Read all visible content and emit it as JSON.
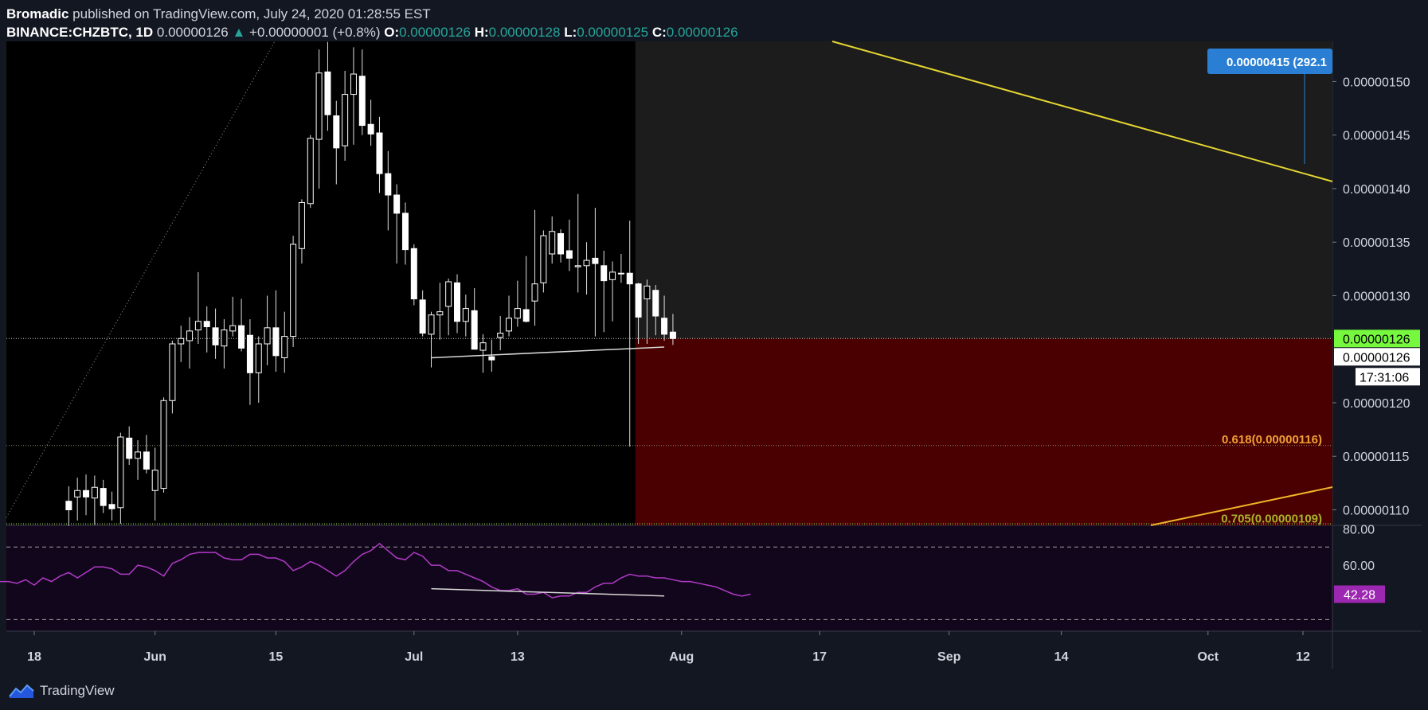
{
  "header": {
    "publisher": "Bromadic",
    "published_text": "published on TradingView.com, July 24, 2020 01:28:55 EST",
    "symbol": "BINANCE:CHZBTC, 1D",
    "last": "0.00000126",
    "change_arrow": "▲",
    "change": "+0.00000001 (+0.8%)",
    "o_label": "O:",
    "o_value": "0.00000126",
    "h_label": "H:",
    "h_value": "0.00000128",
    "l_label": "L:",
    "l_value": "0.00000125",
    "c_label": "C:",
    "c_value": "0.00000126"
  },
  "footer": {
    "brand": "TradingView",
    "logo_icon": "tradingview-logo-icon"
  },
  "colors": {
    "background": "#131722",
    "pane": "#000000",
    "up": "#ffffff",
    "down": "#ffffff",
    "trendline": "#e5d632",
    "fib_zone": "#4a0000",
    "future_zone": "#1c1c1c",
    "rsi_line": "#b13ac7",
    "rsi_bg": "#12061c",
    "current_price": "#76f83f",
    "measure_label": "#2a7fd4",
    "fib_618": "#f0a034",
    "fib_705": "#a8b22a"
  },
  "chart_data": {
    "type": "candlestick",
    "symbol": "BINANCE:CHZBTC",
    "timeframe": "1D",
    "x_ticks": [
      "18",
      "Jun",
      "15",
      "Jul",
      "13",
      "Aug",
      "17",
      "Sep",
      "14",
      "Oct",
      "12"
    ],
    "x_tick_dates": [
      "2020-05-18",
      "2020-06-01",
      "2020-06-15",
      "2020-07-01",
      "2020-07-13",
      "2020-08-01",
      "2020-08-17",
      "2020-09-01",
      "2020-09-14",
      "2020-10-01",
      "2020-10-12"
    ],
    "x_range": [
      "2020-05-11",
      "2020-10-19"
    ],
    "y_ticks": [
      "0.00000150",
      "0.00000145",
      "0.00000140",
      "0.00000135",
      "0.00000130",
      "0.00000120",
      "0.00000115",
      "0.00000110"
    ],
    "y_range": [
      1.0855e-06,
      1.5375e-06
    ],
    "candles": [
      {
        "d": "2020-05-22",
        "o": 1.108,
        "h": 1.122,
        "l": 1.085,
        "c": 1.1
      },
      {
        "d": "2020-05-23",
        "o": 1.112,
        "h": 1.13,
        "l": 1.09,
        "c": 1.118
      },
      {
        "d": "2020-05-24",
        "o": 1.118,
        "h": 1.133,
        "l": 1.095,
        "c": 1.112
      },
      {
        "d": "2020-05-25",
        "o": 1.111,
        "h": 1.132,
        "l": 1.086,
        "c": 1.121
      },
      {
        "d": "2020-05-26",
        "o": 1.12,
        "h": 1.128,
        "l": 1.097,
        "c": 1.104
      },
      {
        "d": "2020-05-27",
        "o": 1.105,
        "h": 1.117,
        "l": 1.09,
        "c": 1.101
      },
      {
        "d": "2020-05-28",
        "o": 1.102,
        "h": 1.172,
        "l": 1.087,
        "c": 1.168
      },
      {
        "d": "2020-05-29",
        "o": 1.167,
        "h": 1.178,
        "l": 1.142,
        "c": 1.148
      },
      {
        "d": "2020-05-30",
        "o": 1.148,
        "h": 1.165,
        "l": 1.128,
        "c": 1.154
      },
      {
        "d": "2020-05-31",
        "o": 1.154,
        "h": 1.17,
        "l": 1.134,
        "c": 1.138
      },
      {
        "d": "2020-06-01",
        "o": 1.118,
        "h": 1.158,
        "l": 1.09,
        "c": 1.137
      },
      {
        "d": "2020-06-02",
        "o": 1.12,
        "h": 1.205,
        "l": 1.116,
        "c": 1.202
      },
      {
        "d": "2020-06-03",
        "o": 1.202,
        "h": 1.258,
        "l": 1.19,
        "c": 1.255
      },
      {
        "d": "2020-06-04",
        "o": 1.255,
        "h": 1.272,
        "l": 1.238,
        "c": 1.26
      },
      {
        "d": "2020-06-05",
        "o": 1.258,
        "h": 1.28,
        "l": 1.232,
        "c": 1.267
      },
      {
        "d": "2020-06-06",
        "o": 1.268,
        "h": 1.322,
        "l": 1.255,
        "c": 1.276
      },
      {
        "d": "2020-06-07",
        "o": 1.276,
        "h": 1.29,
        "l": 1.247,
        "c": 1.271
      },
      {
        "d": "2020-06-08",
        "o": 1.27,
        "h": 1.288,
        "l": 1.241,
        "c": 1.254
      },
      {
        "d": "2020-06-09",
        "o": 1.253,
        "h": 1.278,
        "l": 1.232,
        "c": 1.268
      },
      {
        "d": "2020-06-10",
        "o": 1.267,
        "h": 1.299,
        "l": 1.262,
        "c": 1.272
      },
      {
        "d": "2020-06-11",
        "o": 1.272,
        "h": 1.297,
        "l": 1.248,
        "c": 1.251
      },
      {
        "d": "2020-06-12",
        "o": 1.263,
        "h": 1.278,
        "l": 1.198,
        "c": 1.228
      },
      {
        "d": "2020-06-13",
        "o": 1.228,
        "h": 1.262,
        "l": 1.2,
        "c": 1.255
      },
      {
        "d": "2020-06-14",
        "o": 1.255,
        "h": 1.3,
        "l": 1.235,
        "c": 1.27
      },
      {
        "d": "2020-06-15",
        "o": 1.27,
        "h": 1.305,
        "l": 1.229,
        "c": 1.244
      },
      {
        "d": "2020-06-16",
        "o": 1.242,
        "h": 1.285,
        "l": 1.228,
        "c": 1.262
      },
      {
        "d": "2020-06-17",
        "o": 1.262,
        "h": 1.356,
        "l": 1.252,
        "c": 1.348
      },
      {
        "d": "2020-06-18",
        "o": 1.344,
        "h": 1.39,
        "l": 1.33,
        "c": 1.387
      },
      {
        "d": "2020-06-19",
        "o": 1.386,
        "h": 1.45,
        "l": 1.382,
        "c": 1.447
      },
      {
        "d": "2020-06-20",
        "o": 1.446,
        "h": 1.53,
        "l": 1.4,
        "c": 1.508
      },
      {
        "d": "2020-06-21",
        "o": 1.509,
        "h": 1.537,
        "l": 1.454,
        "c": 1.469
      },
      {
        "d": "2020-06-22",
        "o": 1.468,
        "h": 1.482,
        "l": 1.404,
        "c": 1.438
      },
      {
        "d": "2020-06-23",
        "o": 1.44,
        "h": 1.51,
        "l": 1.426,
        "c": 1.488
      },
      {
        "d": "2020-06-24",
        "o": 1.488,
        "h": 1.532,
        "l": 1.441,
        "c": 1.507
      },
      {
        "d": "2020-06-25",
        "o": 1.505,
        "h": 1.53,
        "l": 1.45,
        "c": 1.459
      },
      {
        "d": "2020-06-26",
        "o": 1.46,
        "h": 1.483,
        "l": 1.44,
        "c": 1.451
      },
      {
        "d": "2020-06-27",
        "o": 1.452,
        "h": 1.467,
        "l": 1.396,
        "c": 1.414
      },
      {
        "d": "2020-06-28",
        "o": 1.414,
        "h": 1.435,
        "l": 1.361,
        "c": 1.394
      },
      {
        "d": "2020-06-29",
        "o": 1.394,
        "h": 1.404,
        "l": 1.33,
        "c": 1.377
      },
      {
        "d": "2020-06-30",
        "o": 1.377,
        "h": 1.387,
        "l": 1.329,
        "c": 1.343
      },
      {
        "d": "2020-07-01",
        "o": 1.344,
        "h": 1.348,
        "l": 1.291,
        "c": 1.297
      },
      {
        "d": "2020-07-02",
        "o": 1.296,
        "h": 1.305,
        "l": 1.262,
        "c": 1.265
      },
      {
        "d": "2020-07-03",
        "o": 1.264,
        "h": 1.285,
        "l": 1.233,
        "c": 1.282
      },
      {
        "d": "2020-07-04",
        "o": 1.282,
        "h": 1.312,
        "l": 1.259,
        "c": 1.285
      },
      {
        "d": "2020-07-05",
        "o": 1.29,
        "h": 1.316,
        "l": 1.263,
        "c": 1.313
      },
      {
        "d": "2020-07-06",
        "o": 1.312,
        "h": 1.32,
        "l": 1.265,
        "c": 1.276
      },
      {
        "d": "2020-07-07",
        "o": 1.276,
        "h": 1.301,
        "l": 1.262,
        "c": 1.288
      },
      {
        "d": "2020-07-08",
        "o": 1.286,
        "h": 1.307,
        "l": 1.25,
        "c": 1.25
      },
      {
        "d": "2020-07-09",
        "o": 1.249,
        "h": 1.264,
        "l": 1.228,
        "c": 1.256
      },
      {
        "d": "2020-07-10",
        "o": 1.243,
        "h": 1.259,
        "l": 1.229,
        "c": 1.24
      },
      {
        "d": "2020-07-11",
        "o": 1.261,
        "h": 1.281,
        "l": 1.249,
        "c": 1.265
      },
      {
        "d": "2020-07-12",
        "o": 1.267,
        "h": 1.3,
        "l": 1.262,
        "c": 1.279
      },
      {
        "d": "2020-07-13",
        "o": 1.279,
        "h": 1.314,
        "l": 1.271,
        "c": 1.288
      },
      {
        "d": "2020-07-14",
        "o": 1.287,
        "h": 1.337,
        "l": 1.275,
        "c": 1.276
      },
      {
        "d": "2020-07-15",
        "o": 1.295,
        "h": 1.38,
        "l": 1.272,
        "c": 1.311
      },
      {
        "d": "2020-07-16",
        "o": 1.312,
        "h": 1.361,
        "l": 1.303,
        "c": 1.356
      },
      {
        "d": "2020-07-17",
        "o": 1.339,
        "h": 1.374,
        "l": 1.33,
        "c": 1.36
      },
      {
        "d": "2020-07-18",
        "o": 1.358,
        "h": 1.362,
        "l": 1.331,
        "c": 1.339
      },
      {
        "d": "2020-07-19",
        "o": 1.342,
        "h": 1.371,
        "l": 1.323,
        "c": 1.335
      },
      {
        "d": "2020-07-20",
        "o": 1.327,
        "h": 1.395,
        "l": 1.303,
        "c": 1.328
      },
      {
        "d": "2020-07-21",
        "o": 1.328,
        "h": 1.35,
        "l": 1.301,
        "c": 1.333
      }
    ],
    "last_candles": [
      {
        "d": "2020-07-22",
        "o": 1.335,
        "h": 1.382,
        "l": 1.262,
        "c": 1.33
      },
      {
        "d": "2020-07-23",
        "o": 1.328,
        "h": 1.342,
        "l": 1.266,
        "c": 1.314
      },
      {
        "d": "2020-07-24",
        "o": 1.315,
        "h": 1.332,
        "l": 1.276,
        "c": 1.322
      },
      {
        "d": "2020-07-25",
        "o": 1.321,
        "h": 1.339,
        "l": 1.312,
        "c": 1.321
      },
      {
        "d": "2020-07-26",
        "o": 1.321,
        "h": 1.37,
        "l": 1.159,
        "c": 1.311
      },
      {
        "d": "2020-07-27",
        "o": 1.311,
        "h": 1.312,
        "l": 1.255,
        "c": 1.28
      },
      {
        "d": "2020-07-28",
        "o": 1.297,
        "h": 1.315,
        "l": 1.255,
        "c": 1.309
      },
      {
        "d": "2020-07-29",
        "o": 1.305,
        "h": 1.31,
        "l": 1.263,
        "c": 1.281
      },
      {
        "d": "2020-07-30",
        "o": 1.279,
        "h": 1.3,
        "l": 1.258,
        "c": 1.264
      },
      {
        "d": "2020-07-31",
        "o": 1.266,
        "h": 1.283,
        "l": 1.254,
        "c": 1.26
      }
    ],
    "candle_unit": "1e-6 BTC",
    "current_price_label": "0.00000126",
    "last_price_label": "0.00000126",
    "countdown_label": "17:31:06",
    "fib_levels": [
      {
        "label": "0.618(0.00000116)",
        "price": 1.16
      },
      {
        "label": "0.705(0.00000109)",
        "price": 1.088
      }
    ],
    "measure_label": "0.00000415 (292.1",
    "rsi": {
      "y_ticks": [
        "80.00",
        "60.00"
      ],
      "current_label": "42.28",
      "y_range": [
        24,
        82
      ],
      "bands": [
        70,
        30
      ],
      "values": [
        53,
        53,
        56,
        51,
        51,
        50,
        52,
        49,
        53,
        51,
        54,
        56,
        53,
        56,
        59,
        59,
        58,
        55,
        55,
        60,
        59,
        57,
        54,
        61,
        63,
        66,
        67,
        67,
        67,
        64,
        63,
        63,
        66,
        66,
        64,
        64,
        62,
        57,
        59,
        62,
        60,
        57,
        54,
        57,
        62,
        66,
        68,
        72,
        68,
        64,
        63,
        67,
        65,
        60,
        60,
        57,
        57,
        55,
        53,
        51,
        48,
        46,
        46,
        47,
        44,
        44,
        45,
        42,
        43,
        43,
        45,
        45,
        48,
        50,
        50,
        53,
        55,
        54,
        54,
        53,
        53,
        52,
        51,
        51,
        50,
        49,
        48,
        46,
        44,
        43,
        44
      ],
      "value_dates_start": "2020-05-11"
    }
  }
}
